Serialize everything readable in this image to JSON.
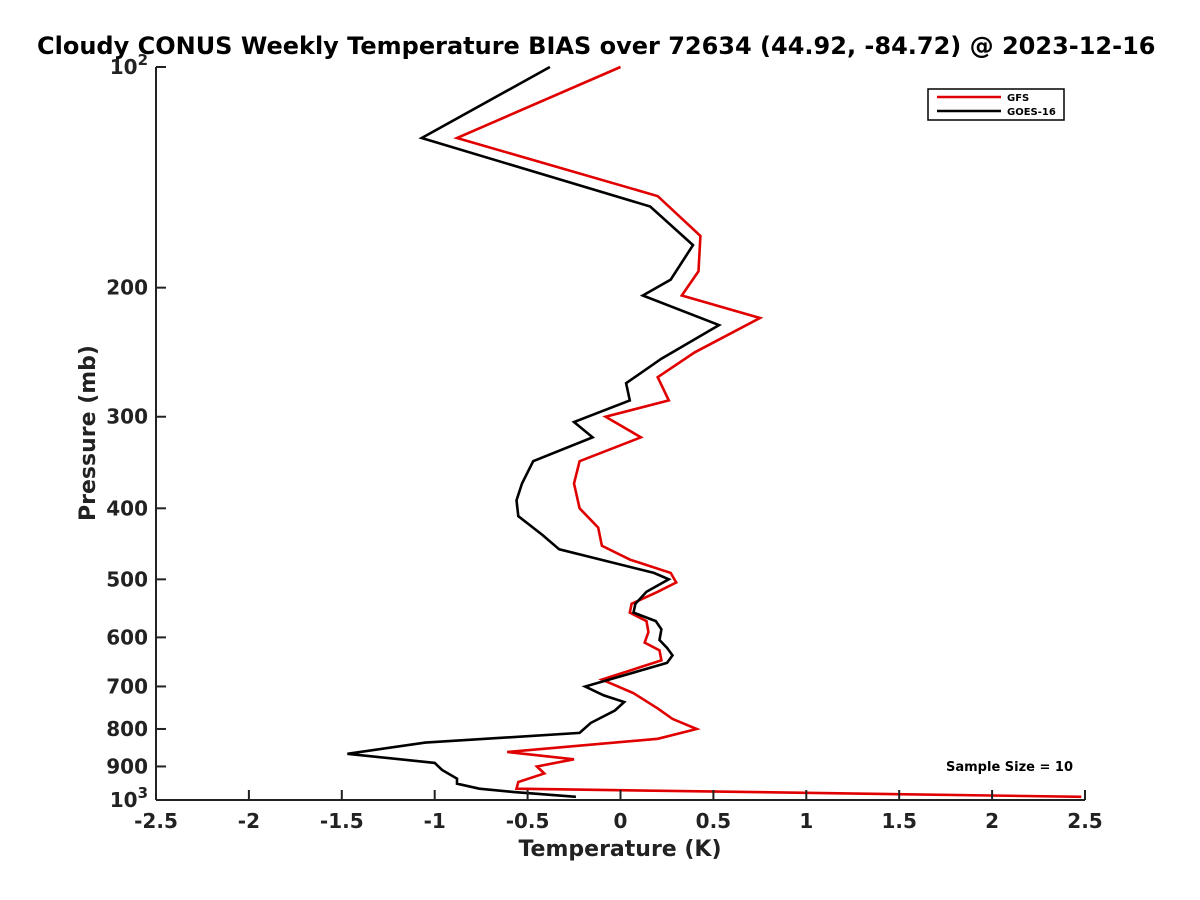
{
  "chart_data": {
    "type": "line",
    "title": "Cloudy CONUS Weekly Temperature BIAS over 72634 (44.92, -84.72) @ 2023-12-16",
    "xlabel": "Temperature (K)",
    "ylabel": "Pressure (mb)",
    "xlim": [
      -2.5,
      2.5
    ],
    "ylim": [
      100,
      1000
    ],
    "yscale": "log",
    "y_reversed": true,
    "grid": false,
    "legend_position": "top-right",
    "x_ticks": [
      -2.5,
      -2,
      -1.5,
      -1,
      -0.5,
      0,
      0.5,
      1,
      1.5,
      2,
      2.5
    ],
    "x_tick_labels": [
      "-2.5",
      "-2",
      "-1.5",
      "-1",
      "-0.5",
      "0",
      "0.5",
      "1",
      "1.5",
      "2",
      "2.5"
    ],
    "y_ticks": [
      100,
      200,
      300,
      400,
      500,
      600,
      700,
      800,
      900,
      1000
    ],
    "y_tick_labels": [
      {
        "base": "10",
        "exp": "2"
      },
      {
        "base": "200",
        "exp": ""
      },
      {
        "base": "300",
        "exp": ""
      },
      {
        "base": "400",
        "exp": ""
      },
      {
        "base": "500",
        "exp": ""
      },
      {
        "base": "600",
        "exp": ""
      },
      {
        "base": "700",
        "exp": ""
      },
      {
        "base": "800",
        "exp": ""
      },
      {
        "base": "900",
        "exp": ""
      },
      {
        "base": "10",
        "exp": "3"
      }
    ],
    "annotation": "Sample Size = 10",
    "series": [
      {
        "name": "GFS",
        "color": "#e00000",
        "points": [
          [
            0,
            100
          ],
          [
            -0.88,
            125
          ],
          [
            0.2,
            150
          ],
          [
            0.43,
            170
          ],
          [
            0.42,
            190
          ],
          [
            0.33,
            205
          ],
          [
            0.75,
            220
          ],
          [
            0.4,
            245
          ],
          [
            0.2,
            265
          ],
          [
            0.26,
            285
          ],
          [
            -0.08,
            300
          ],
          [
            0.11,
            320
          ],
          [
            -0.22,
            345
          ],
          [
            -0.25,
            370
          ],
          [
            -0.22,
            400
          ],
          [
            -0.12,
            425
          ],
          [
            -0.1,
            450
          ],
          [
            0.05,
            470
          ],
          [
            0.27,
            490
          ],
          [
            0.3,
            505
          ],
          [
            0.2,
            520
          ],
          [
            0.06,
            540
          ],
          [
            0.05,
            555
          ],
          [
            0.14,
            570
          ],
          [
            0.15,
            590
          ],
          [
            0.13,
            610
          ],
          [
            0.21,
            625
          ],
          [
            0.22,
            645
          ],
          [
            -0.1,
            685
          ],
          [
            0.07,
            715
          ],
          [
            0.2,
            750
          ],
          [
            0.28,
            775
          ],
          [
            0.41,
            800
          ],
          [
            0.2,
            825
          ],
          [
            -0.61,
            860
          ],
          [
            -0.25,
            880
          ],
          [
            -0.45,
            900
          ],
          [
            -0.41,
            920
          ],
          [
            -0.55,
            945
          ],
          [
            -0.56,
            965
          ],
          [
            2.48,
            990
          ]
        ]
      },
      {
        "name": "GOES-16",
        "color": "#000000",
        "points": [
          [
            -0.38,
            100
          ],
          [
            -1.07,
            125
          ],
          [
            0.16,
            155
          ],
          [
            0.39,
            175
          ],
          [
            0.27,
            195
          ],
          [
            0.12,
            205
          ],
          [
            0.53,
            225
          ],
          [
            0.22,
            250
          ],
          [
            0.03,
            270
          ],
          [
            0.05,
            285
          ],
          [
            -0.25,
            305
          ],
          [
            -0.15,
            320
          ],
          [
            -0.47,
            345
          ],
          [
            -0.53,
            370
          ],
          [
            -0.56,
            390
          ],
          [
            -0.55,
            410
          ],
          [
            -0.42,
            435
          ],
          [
            -0.33,
            455
          ],
          [
            0.18,
            490
          ],
          [
            0.26,
            500
          ],
          [
            0.14,
            520
          ],
          [
            0.08,
            540
          ],
          [
            0.07,
            555
          ],
          [
            0.19,
            570
          ],
          [
            0.22,
            585
          ],
          [
            0.21,
            605
          ],
          [
            0.25,
            620
          ],
          [
            0.28,
            635
          ],
          [
            0.25,
            650
          ],
          [
            -0.19,
            700
          ],
          [
            -0.09,
            720
          ],
          [
            0.02,
            735
          ],
          [
            -0.03,
            755
          ],
          [
            -0.16,
            785
          ],
          [
            -0.22,
            810
          ],
          [
            -1.05,
            835
          ],
          [
            -1.47,
            865
          ],
          [
            -1.0,
            890
          ],
          [
            -0.96,
            910
          ],
          [
            -0.88,
            935
          ],
          [
            -0.88,
            950
          ],
          [
            -0.76,
            965
          ],
          [
            -0.58,
            975
          ],
          [
            -0.24,
            990
          ]
        ]
      }
    ]
  }
}
